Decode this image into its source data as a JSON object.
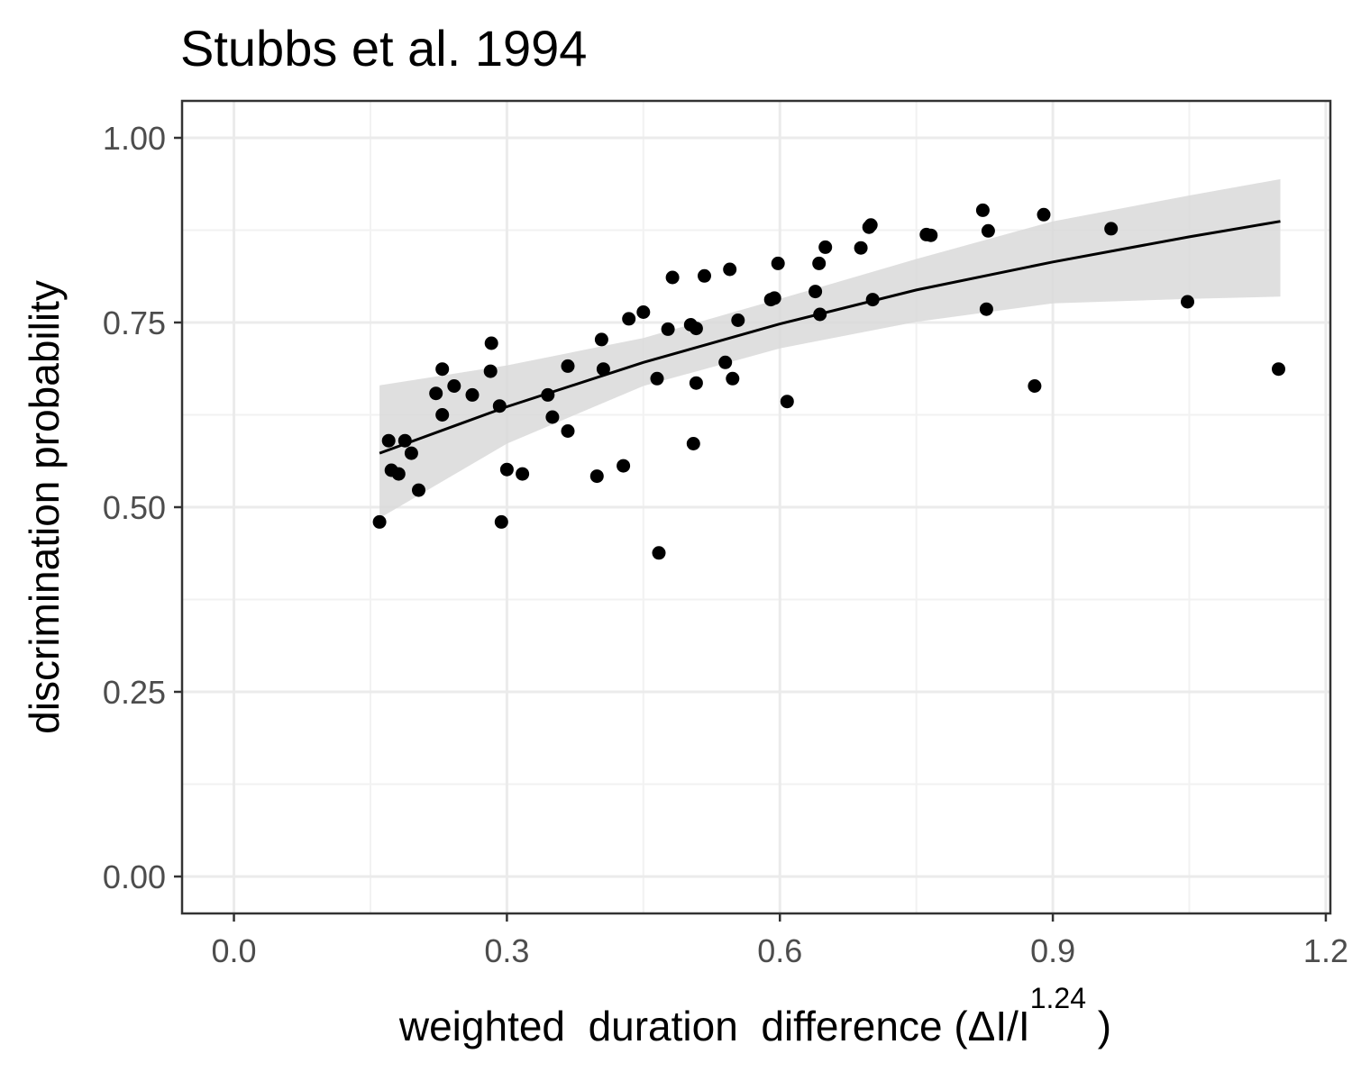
{
  "chart_data": {
    "type": "scatter",
    "title": "Stubbs et al. 1994",
    "xlabel": {
      "main": "weighted  duration  difference (ΔI/I",
      "superscript": "1.24",
      "closing": " )"
    },
    "ylabel": "discrimination probability",
    "xlim": [
      -0.057,
      1.205
    ],
    "ylim": [
      -0.05,
      1.05
    ],
    "x_ticks": [
      0.0,
      0.3,
      0.6,
      0.9,
      1.2
    ],
    "x_tick_labels": [
      "0.0",
      "0.3",
      "0.6",
      "0.9",
      "1.2"
    ],
    "y_ticks": [
      0.0,
      0.25,
      0.5,
      0.75,
      1.0
    ],
    "y_tick_labels": [
      "0.00",
      "0.25",
      "0.50",
      "0.75",
      "1.00"
    ],
    "grid": true,
    "legend": "none",
    "colors": {
      "points": "#000000",
      "fit_line": "#000000",
      "ribbon": "#d9d9d9",
      "grid_major": "#ebebeb",
      "grid_minor": "#f2f2f2",
      "panel_border": "#333333"
    },
    "series": [
      {
        "kind": "points",
        "x": [
          0.16,
          0.17,
          0.173,
          0.181,
          0.188,
          0.195,
          0.203,
          0.222,
          0.229,
          0.229,
          0.242,
          0.262,
          0.282,
          0.283,
          0.292,
          0.294,
          0.3,
          0.317,
          0.345,
          0.35,
          0.367,
          0.367,
          0.399,
          0.404,
          0.406,
          0.428,
          0.434,
          0.45,
          0.465,
          0.467,
          0.477,
          0.482,
          0.502,
          0.505,
          0.508,
          0.508,
          0.517,
          0.54,
          0.545,
          0.548,
          0.554,
          0.59,
          0.594,
          0.598,
          0.608,
          0.639,
          0.643,
          0.644,
          0.65,
          0.689,
          0.698,
          0.7,
          0.702,
          0.761,
          0.766,
          0.823,
          0.827,
          0.829,
          0.88,
          0.89,
          0.964,
          1.048,
          1.148
        ],
        "y": [
          0.48,
          0.59,
          0.55,
          0.545,
          0.59,
          0.573,
          0.523,
          0.654,
          0.625,
          0.687,
          0.664,
          0.652,
          0.684,
          0.722,
          0.637,
          0.48,
          0.551,
          0.545,
          0.652,
          0.622,
          0.691,
          0.603,
          0.542,
          0.727,
          0.687,
          0.556,
          0.755,
          0.764,
          0.674,
          0.438,
          0.741,
          0.811,
          0.747,
          0.586,
          0.668,
          0.742,
          0.813,
          0.696,
          0.822,
          0.674,
          0.753,
          0.781,
          0.783,
          0.83,
          0.643,
          0.792,
          0.83,
          0.761,
          0.852,
          0.851,
          0.879,
          0.882,
          0.781,
          0.869,
          0.868,
          0.902,
          0.768,
          0.874,
          0.664,
          0.896,
          0.877,
          0.778,
          0.687
        ]
      },
      {
        "kind": "fit",
        "x": [
          0.16,
          0.3,
          0.45,
          0.6,
          0.75,
          0.9,
          1.05,
          1.15
        ],
        "y": [
          0.573,
          0.636,
          0.696,
          0.748,
          0.794,
          0.832,
          0.866,
          0.887
        ]
      },
      {
        "kind": "ribbon",
        "x": [
          0.16,
          0.3,
          0.45,
          0.6,
          0.75,
          0.9,
          1.05,
          1.15
        ],
        "ymin": [
          0.485,
          0.586,
          0.664,
          0.715,
          0.751,
          0.776,
          0.782,
          0.785
        ],
        "ymax": [
          0.665,
          0.692,
          0.729,
          0.782,
          0.836,
          0.887,
          0.922,
          0.944
        ]
      }
    ]
  }
}
